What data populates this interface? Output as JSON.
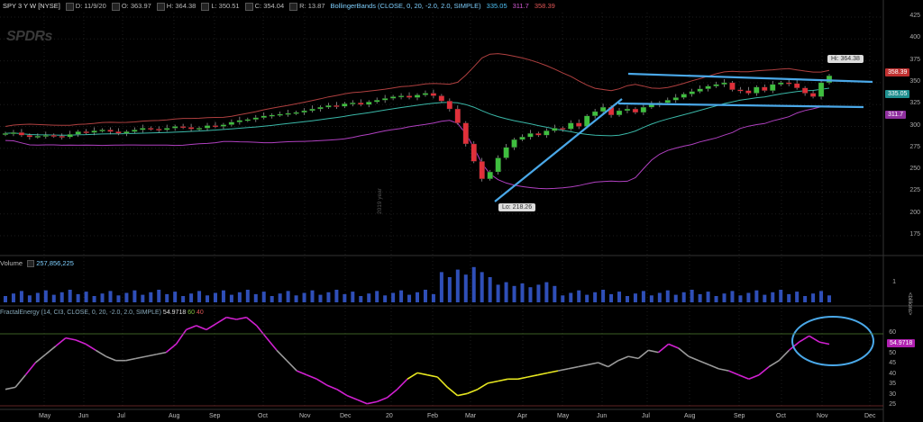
{
  "header": {
    "symbol": "SPY 3 Y W [NYSE]",
    "date": "D: 11/9/20",
    "open": "O: 363.97",
    "high": "H: 364.38",
    "low": "L: 350.51",
    "close": "C: 354.04",
    "range": "R: 13.87",
    "study": "BollingerBands (CLOSE, 0, 20, -2.0, 2.0, SIMPLE)",
    "bb_upper": "335.05",
    "bb_mid": "311.7",
    "bb_lower": "358.39"
  },
  "logo_text": "SPDRs",
  "year_mark": "2019 year",
  "price_axis": [
    "425",
    "400",
    "375",
    "350",
    "325",
    "300",
    "275",
    "250",
    "225",
    "200",
    "175"
  ],
  "price_pills": {
    "last": "358.39",
    "upper": "335.05",
    "mid": "311.7"
  },
  "callouts": {
    "high": "Hi: 364.38",
    "low": "Lo: 218.26"
  },
  "volume": {
    "label": "Volume",
    "value": "257,856,225",
    "axis_value": "1",
    "axis_unit": "<billions>"
  },
  "fractal_energy": {
    "label": "FractalEnergy (14, CI3, CLOSE, 0, 20, -2.0, 2.0, SIMPLE)",
    "value": "54.9718",
    "level_60": "60",
    "level_40": "40",
    "axis": [
      "60",
      "50",
      "45",
      "40",
      "35",
      "30",
      "25"
    ],
    "pill": "54.9718"
  },
  "x_axis": [
    "May",
    "Jun",
    "Jul",
    "Aug",
    "Sep",
    "Oct",
    "Nov",
    "Dec",
    "20",
    "Feb",
    "Mar",
    "Apr",
    "May",
    "Jun",
    "Jul",
    "Aug",
    "Sep",
    "Oct",
    "Nov",
    "Dec"
  ],
  "colors": {
    "up": "#3fbf3f",
    "down": "#e0303a",
    "bb_upper": "#b04040",
    "bb_mid": "#3ab8a8",
    "bb_lower": "#b040c0",
    "trendline": "#4aa8e8",
    "fe_line": "#9a9a9a",
    "fe_high": "#d020d0",
    "fe_low": "#e8e820"
  }
}
